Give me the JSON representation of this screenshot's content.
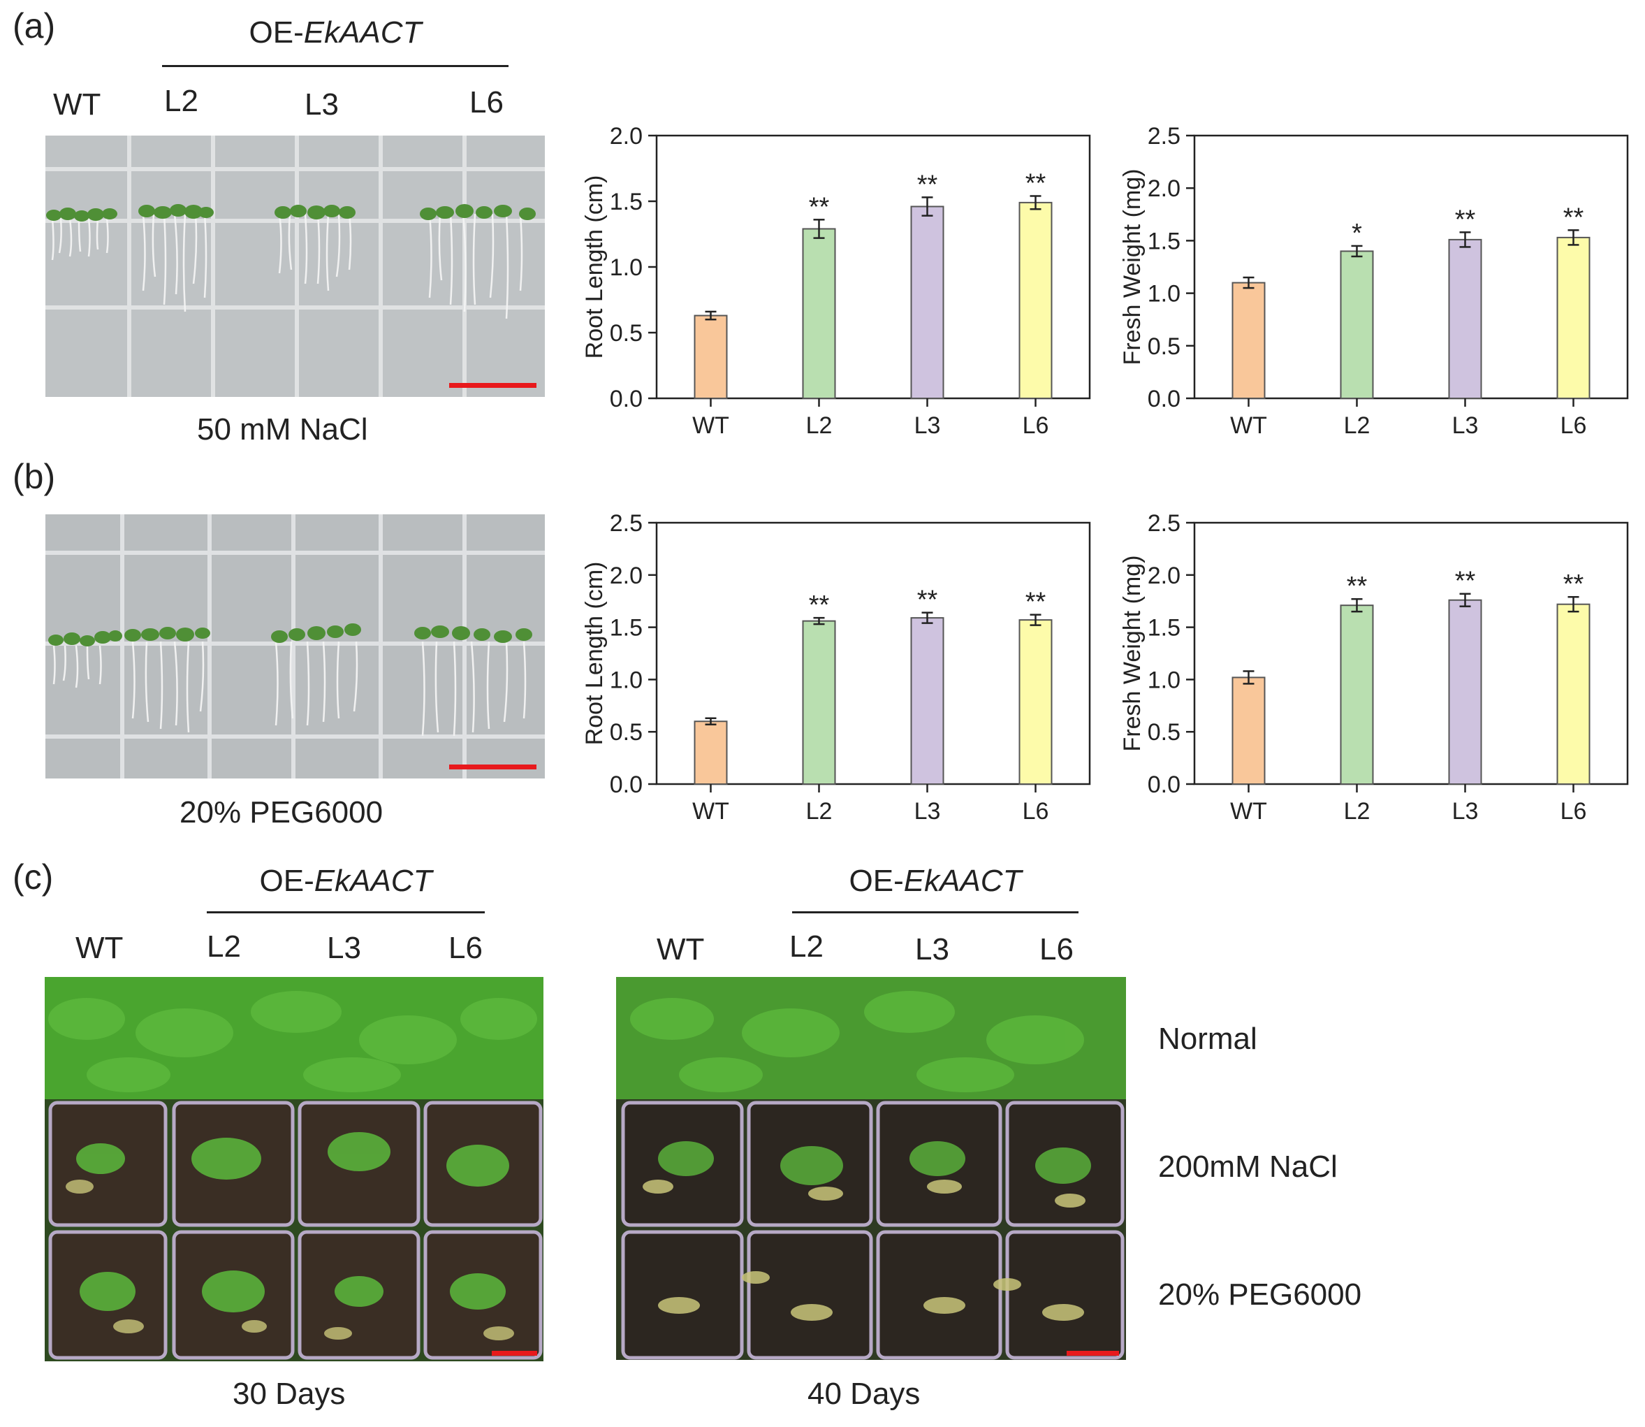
{
  "panels": {
    "a": {
      "label": "(a)",
      "oe_prefix": "OE-",
      "oe_gene": "EkAACT",
      "lines": [
        "WT",
        "L2",
        "L3",
        "L6"
      ],
      "condition": "50 mM NaCl"
    },
    "b": {
      "label": "(b)",
      "condition": "20% PEG6000"
    },
    "c": {
      "label": "(c)",
      "left": {
        "oe_prefix": "OE-",
        "oe_gene": "EkAACT",
        "lines": [
          "WT",
          "L2",
          "L3",
          "L6"
        ],
        "caption": "30 Days"
      },
      "right": {
        "oe_prefix": "OE-",
        "oe_gene": "EkAACT",
        "lines": [
          "WT",
          "L2",
          "L3",
          "L6"
        ],
        "caption": "40 Days"
      },
      "rows": [
        "Normal",
        "200mM NaCl",
        "20% PEG6000"
      ]
    }
  },
  "colors": {
    "WT": "#f9c79a",
    "L2": "#b9dfb0",
    "L3": "#cfc3df",
    "L6": "#fdfbaa",
    "border": "#555555",
    "scalebar": "#e8191c",
    "plate": "#b9bdbf",
    "plant_green": "#3f9a2c",
    "soil": "#2a221c"
  },
  "chart_data": [
    {
      "id": "a-root",
      "type": "bar",
      "categories": [
        "WT",
        "L2",
        "L3",
        "L6"
      ],
      "values": [
        0.63,
        1.29,
        1.46,
        1.49
      ],
      "errors": [
        0.03,
        0.07,
        0.07,
        0.05
      ],
      "significance": [
        "",
        "**",
        "**",
        "**"
      ],
      "ylabel": "Root Length (cm)",
      "ylim": [
        0,
        2.0
      ],
      "yticks": [
        "0.0",
        "0.5",
        "1.0",
        "1.5",
        "2.0"
      ]
    },
    {
      "id": "a-fresh",
      "type": "bar",
      "categories": [
        "WT",
        "L2",
        "L3",
        "L6"
      ],
      "values": [
        1.1,
        1.4,
        1.51,
        1.53
      ],
      "errors": [
        0.05,
        0.05,
        0.07,
        0.07
      ],
      "significance": [
        "",
        "*",
        "**",
        "**"
      ],
      "ylabel": "Fresh Weight (mg)",
      "ylim": [
        0,
        2.5
      ],
      "yticks": [
        "0.0",
        "0.5",
        "1.0",
        "1.5",
        "2.0",
        "2.5"
      ]
    },
    {
      "id": "b-root",
      "type": "bar",
      "categories": [
        "WT",
        "L2",
        "L3",
        "L6"
      ],
      "values": [
        0.6,
        1.56,
        1.59,
        1.57
      ],
      "errors": [
        0.03,
        0.03,
        0.05,
        0.05
      ],
      "significance": [
        "",
        "**",
        "**",
        "**"
      ],
      "ylabel": "Root Length (cm)",
      "ylim": [
        0,
        2.5
      ],
      "yticks": [
        "0.0",
        "0.5",
        "1.0",
        "1.5",
        "2.0",
        "2.5"
      ]
    },
    {
      "id": "b-fresh",
      "type": "bar",
      "categories": [
        "WT",
        "L2",
        "L3",
        "L6"
      ],
      "values": [
        1.02,
        1.71,
        1.76,
        1.72
      ],
      "errors": [
        0.06,
        0.06,
        0.06,
        0.07
      ],
      "significance": [
        "",
        "**",
        "**",
        "**"
      ],
      "ylabel": "Fresh Weight (mg)",
      "ylim": [
        0,
        2.5
      ],
      "yticks": [
        "0.0",
        "0.5",
        "1.0",
        "1.5",
        "2.0",
        "2.5"
      ]
    }
  ]
}
